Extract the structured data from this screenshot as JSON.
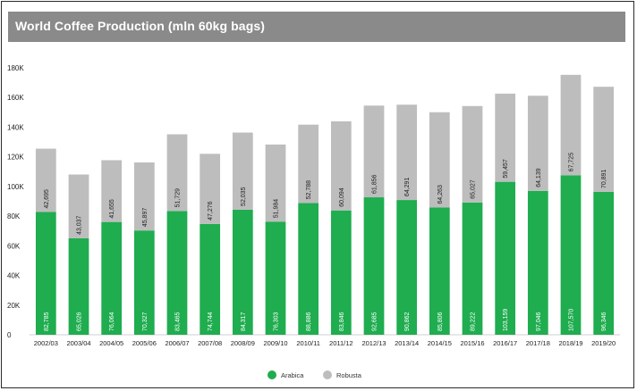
{
  "title": "World Coffee Production (mln 60kg bags)",
  "colors": {
    "arabica": "#1fad4f",
    "robusta": "#bdbdbd",
    "title_bg": "#8a8a8a"
  },
  "chart_data": {
    "type": "bar",
    "stacked": true,
    "title": "World Coffee Production (mln 60kg bags)",
    "categories": [
      "2002/03",
      "2003/04",
      "2004/05",
      "2005/06",
      "2006/07",
      "2007/08",
      "2008/09",
      "2009/10",
      "2010/11",
      "2011/12",
      "2012/13",
      "2013/14",
      "2014/15",
      "2015/16",
      "2016/17",
      "2017/18",
      "2018/19",
      "2019/20"
    ],
    "series": [
      {
        "name": "Arabica",
        "color": "#1fad4f",
        "values": [
          82785,
          65026,
          76064,
          70327,
          83465,
          74744,
          84317,
          76303,
          88886,
          83846,
          92685,
          90862,
          85806,
          89222,
          103159,
          97046,
          107570,
          96346
        ],
        "labels": [
          "82,785",
          "65,026",
          "76,064",
          "70,327",
          "83,465",
          "74,744",
          "84,317",
          "76,303",
          "88,886",
          "83,846",
          "92,685",
          "90,862",
          "85,806",
          "89,222",
          "103,159",
          "97,046",
          "107,570",
          "96,346"
        ]
      },
      {
        "name": "Robusta",
        "color": "#bdbdbd",
        "values": [
          42695,
          43037,
          41655,
          45897,
          51729,
          47276,
          52035,
          51984,
          52788,
          60094,
          61856,
          64291,
          64263,
          65027,
          59457,
          64139,
          67725,
          70891
        ],
        "labels": [
          "42,695",
          "43,037",
          "41,655",
          "45,897",
          "51,729",
          "47,276",
          "52,035",
          "51,984",
          "52,788",
          "60,094",
          "61,856",
          "64,291",
          "64,263",
          "65,027",
          "59,457",
          "64,139",
          "67,725",
          "70,891"
        ]
      }
    ],
    "ylim": [
      0,
      180000
    ],
    "yticks": [
      0,
      20000,
      40000,
      60000,
      80000,
      100000,
      120000,
      140000,
      160000,
      180000
    ],
    "ytick_labels": [
      "0",
      "20K",
      "40K",
      "60K",
      "80K",
      "100K",
      "120K",
      "140K",
      "160K",
      "180K"
    ],
    "grid": false,
    "legend": "bottom-center",
    "xlabel": "",
    "ylabel": ""
  }
}
